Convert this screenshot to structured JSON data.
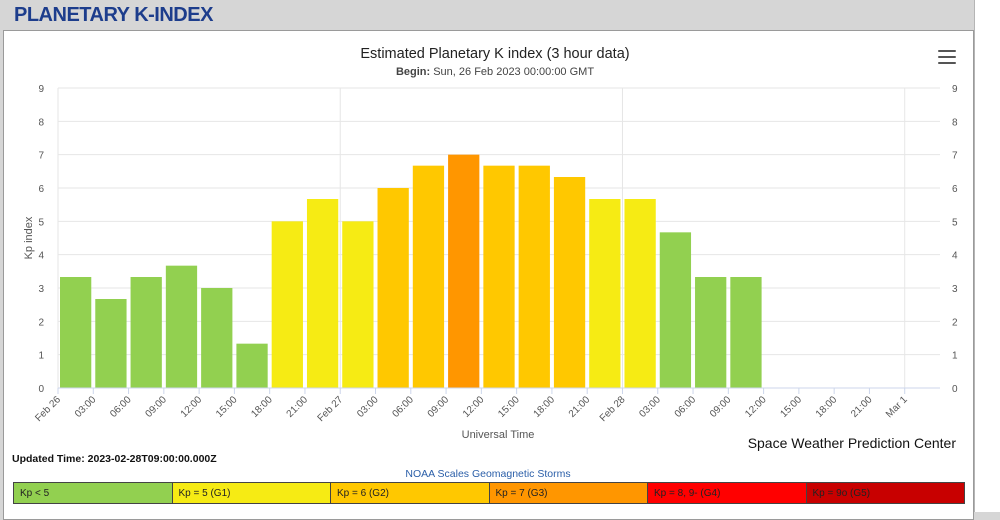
{
  "page": {
    "title": "PLANETARY K-INDEX"
  },
  "chart_data": {
    "type": "bar",
    "title": "Estimated Planetary K index (3 hour data)",
    "subtitle_label": "Begin:",
    "subtitle_value": "Sun, 26 Feb 2023 00:00:00 GMT",
    "xlabel": "Universal Time",
    "ylabel": "Kp index",
    "ylim": [
      0,
      9
    ],
    "yticks": [
      0,
      1,
      2,
      3,
      4,
      5,
      6,
      7,
      8,
      9
    ],
    "right_axis": true,
    "grid": true,
    "x_tick_labels": [
      "Feb 26",
      "03:00",
      "06:00",
      "09:00",
      "12:00",
      "15:00",
      "18:00",
      "21:00",
      "Feb 27",
      "03:00",
      "06:00",
      "09:00",
      "12:00",
      "15:00",
      "18:00",
      "21:00",
      "Feb 28",
      "03:00",
      "06:00",
      "09:00",
      "12:00",
      "15:00",
      "18:00",
      "21:00",
      "Mar 1"
    ],
    "values": [
      3.33,
      2.67,
      3.33,
      3.67,
      3.0,
      1.33,
      5.0,
      5.67,
      5.0,
      6.0,
      6.67,
      7.0,
      6.67,
      6.67,
      6.33,
      5.67,
      5.67,
      4.67,
      3.33,
      3.33
    ],
    "colors": {
      "kp_below_5": "#92d050",
      "kp_5": "#f6eb14",
      "kp_6": "#ffc800",
      "kp_7": "#ff9600",
      "kp_8": "#ff0000",
      "kp_9": "#c80000"
    }
  },
  "footer": {
    "updated_label": "Updated Time:",
    "updated_value": "2023-02-28T09:00:00.000Z",
    "credit": "Space Weather Prediction Center",
    "scale_title": "NOAA Scales Geomagnetic Storms",
    "scale_items": [
      {
        "label": "Kp < 5",
        "color": "#92d050"
      },
      {
        "label": "Kp = 5 (G1)",
        "color": "#f6eb14"
      },
      {
        "label": "Kp = 6 (G2)",
        "color": "#ffc800"
      },
      {
        "label": "Kp = 7 (G3)",
        "color": "#ff9600"
      },
      {
        "label": "Kp = 8, 9- (G4)",
        "color": "#ff0000"
      },
      {
        "label": "Kp = 9o (G5)",
        "color": "#c80000"
      }
    ]
  }
}
